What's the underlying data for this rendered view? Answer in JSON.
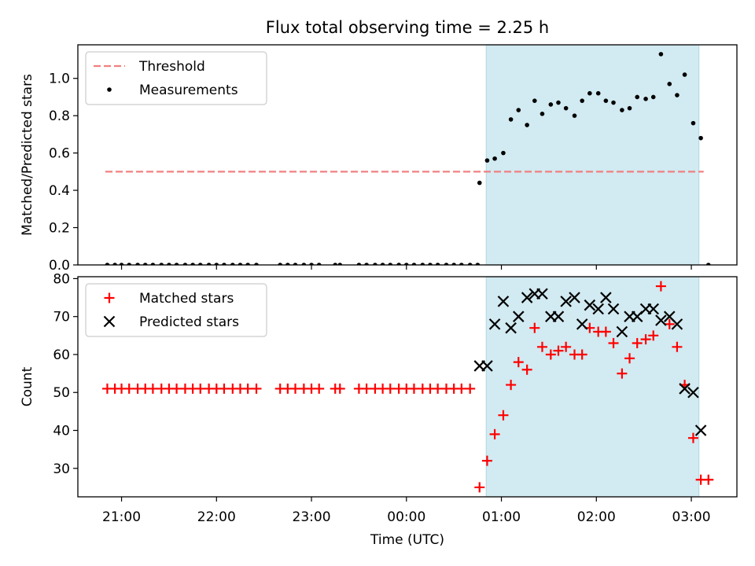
{
  "chart_data": [
    {
      "type": "scatter",
      "title": "Flux total observing time = 2.25 h",
      "xlabel": "",
      "ylabel": "Matched/Predicted stars",
      "xlim": [
        20.54,
        27.48
      ],
      "ylim": [
        0.0,
        1.18
      ],
      "yticks": [
        0.0,
        0.2,
        0.4,
        0.6,
        0.8,
        1.0
      ],
      "yticklabels": [
        "0.0",
        "0.2",
        "0.4",
        "0.6",
        "0.8",
        "1.0"
      ],
      "shaded_region": {
        "x_start": 24.84,
        "x_end": 27.08,
        "color": "#add8e6"
      },
      "legend": {
        "placement": "top-left",
        "entries": [
          "Threshold",
          "Measurements"
        ]
      },
      "series": [
        {
          "name": "Threshold",
          "style": "dashed-line",
          "color": "#f08080",
          "x": [
            20.83,
            27.13
          ],
          "y": [
            0.5,
            0.5
          ]
        },
        {
          "name": "Measurements",
          "style": "dots",
          "color": "#000000",
          "x": [
            20.85,
            20.93,
            21.0,
            21.08,
            21.17,
            21.25,
            21.33,
            21.42,
            21.5,
            21.58,
            21.67,
            21.75,
            21.83,
            21.92,
            22.0,
            22.08,
            22.17,
            22.25,
            22.33,
            22.42,
            22.67,
            22.75,
            22.83,
            22.92,
            23.0,
            23.08,
            23.25,
            23.3,
            23.5,
            23.58,
            23.67,
            23.75,
            23.83,
            23.92,
            24.0,
            24.08,
            24.17,
            24.25,
            24.33,
            24.42,
            24.5,
            24.58,
            24.67,
            24.75,
            24.77,
            24.85,
            24.93,
            25.02,
            25.1,
            25.18,
            25.27,
            25.35,
            25.43,
            25.52,
            25.6,
            25.68,
            25.77,
            25.85,
            25.93,
            26.02,
            26.1,
            26.18,
            26.27,
            26.35,
            26.43,
            26.52,
            26.6,
            26.68,
            26.77,
            26.85,
            26.93,
            27.02,
            27.1,
            27.18
          ],
          "y": [
            0,
            0,
            0,
            0,
            0,
            0,
            0,
            0,
            0,
            0,
            0,
            0,
            0,
            0,
            0,
            0,
            0,
            0,
            0,
            0,
            0,
            0,
            0,
            0,
            0,
            0,
            0,
            0,
            0,
            0,
            0,
            0,
            0,
            0,
            0,
            0,
            0,
            0,
            0,
            0,
            0,
            0,
            0,
            0,
            0.44,
            0.56,
            0.57,
            0.6,
            0.78,
            0.83,
            0.75,
            0.88,
            0.81,
            0.86,
            0.87,
            0.84,
            0.8,
            0.88,
            0.92,
            0.92,
            0.88,
            0.87,
            0.83,
            0.84,
            0.9,
            0.89,
            0.9,
            1.13,
            0.97,
            0.91,
            1.02,
            0.76,
            0.68,
            0
          ]
        }
      ]
    },
    {
      "type": "scatter",
      "title": "",
      "xlabel": "Time (UTC)",
      "ylabel": "Count",
      "xlim": [
        20.54,
        27.48
      ],
      "ylim": [
        22.5,
        80.5
      ],
      "yticks": [
        30,
        40,
        50,
        60,
        70,
        80
      ],
      "yticklabels": [
        "30",
        "40",
        "50",
        "60",
        "70",
        "80"
      ],
      "xticks": [
        21,
        22,
        23,
        24,
        25,
        26,
        27
      ],
      "xticklabels": [
        "21:00",
        "22:00",
        "23:00",
        "00:00",
        "01:00",
        "02:00",
        "03:00"
      ],
      "shaded_region": {
        "x_start": 24.84,
        "x_end": 27.08,
        "color": "#add8e6"
      },
      "legend": {
        "placement": "top-left",
        "entries": [
          "Matched stars",
          "Predicted stars"
        ]
      },
      "series": [
        {
          "name": "Matched stars",
          "marker": "plus",
          "color": "#ff0000",
          "x": [
            20.85,
            20.93,
            21.0,
            21.08,
            21.17,
            21.25,
            21.33,
            21.42,
            21.5,
            21.58,
            21.67,
            21.75,
            21.83,
            21.92,
            22.0,
            22.08,
            22.17,
            22.25,
            22.33,
            22.42,
            22.67,
            22.75,
            22.83,
            22.92,
            23.0,
            23.08,
            23.25,
            23.3,
            23.5,
            23.58,
            23.67,
            23.75,
            23.83,
            23.92,
            24.0,
            24.08,
            24.17,
            24.25,
            24.33,
            24.42,
            24.5,
            24.58,
            24.67,
            24.77,
            24.85,
            24.93,
            25.02,
            25.1,
            25.18,
            25.27,
            25.35,
            25.43,
            25.52,
            25.6,
            25.68,
            25.77,
            25.85,
            25.93,
            26.02,
            26.1,
            26.18,
            26.27,
            26.35,
            26.43,
            26.52,
            26.6,
            26.68,
            26.77,
            26.85,
            26.93,
            27.02,
            27.1,
            27.18
          ],
          "y": [
            51,
            51,
            51,
            51,
            51,
            51,
            51,
            51,
            51,
            51,
            51,
            51,
            51,
            51,
            51,
            51,
            51,
            51,
            51,
            51,
            51,
            51,
            51,
            51,
            51,
            51,
            51,
            51,
            51,
            51,
            51,
            51,
            51,
            51,
            51,
            51,
            51,
            51,
            51,
            51,
            51,
            51,
            51,
            25,
            32,
            39,
            44,
            52,
            58,
            56,
            67,
            62,
            60,
            61,
            62,
            60,
            60,
            67,
            66,
            66,
            63,
            55,
            59,
            63,
            64,
            65,
            78,
            68,
            62,
            52,
            38,
            27,
            27
          ]
        },
        {
          "name": "Predicted stars",
          "marker": "x",
          "color": "#000000",
          "x": [
            24.77,
            24.85,
            24.93,
            25.02,
            25.1,
            25.18,
            25.27,
            25.35,
            25.43,
            25.52,
            25.6,
            25.68,
            25.77,
            25.85,
            25.93,
            26.02,
            26.1,
            26.18,
            26.27,
            26.35,
            26.43,
            26.52,
            26.6,
            26.68,
            26.77,
            26.85,
            26.93,
            27.02,
            27.1
          ],
          "y": [
            57,
            57,
            68,
            74,
            67,
            70,
            75,
            76,
            76,
            70,
            70,
            74,
            75,
            68,
            73,
            72,
            75,
            72,
            66,
            70,
            70,
            72,
            72,
            69,
            70,
            68,
            51,
            50,
            40
          ]
        }
      ]
    }
  ]
}
